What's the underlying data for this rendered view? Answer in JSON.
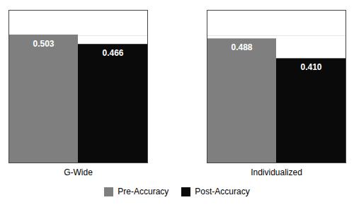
{
  "chart_data": {
    "type": "bar",
    "categories": [
      "G-Wide",
      "Individualized"
    ],
    "series": [
      {
        "name": "Pre-Accuracy",
        "color": "#7f7f7f",
        "values": [
          0.503,
          0.488
        ],
        "value_labels": [
          "0.503",
          "0.488"
        ]
      },
      {
        "name": "Post-Accuracy",
        "color": "#0a0a0a",
        "values": [
          0.466,
          0.41
        ],
        "value_labels": [
          "0.466",
          "0.410"
        ]
      }
    ],
    "ylim": [
      0,
      0.6
    ],
    "yticks": [
      0.1,
      0.2,
      0.3,
      0.4,
      0.5
    ],
    "grid": true,
    "data_labels": true,
    "tick_labels": "x",
    "legend": "bottom"
  }
}
